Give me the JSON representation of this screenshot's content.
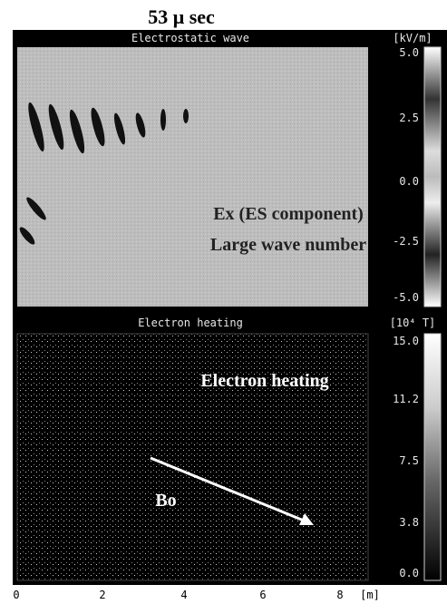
{
  "title": "53 μ sec",
  "panels": [
    {
      "title": "Electrostatic wave",
      "unit": "[kV/m]",
      "colorbar_labels": [
        "5.0",
        "2.5",
        "0.0",
        "-2.5",
        "-5.0"
      ],
      "annotations": [
        "Ex (ES component)",
        "Large wave number"
      ]
    },
    {
      "title": "Electron heating",
      "unit": "[10⁴ T]",
      "colorbar_labels": [
        "15.0",
        "11.2",
        "7.5",
        "3.8",
        "0.0"
      ],
      "annotations": [
        "Electron heating",
        "Bo"
      ]
    }
  ],
  "x_axis": {
    "labels": [
      "0",
      "2",
      "4",
      "6",
      "8"
    ],
    "unit": "[m]"
  }
}
